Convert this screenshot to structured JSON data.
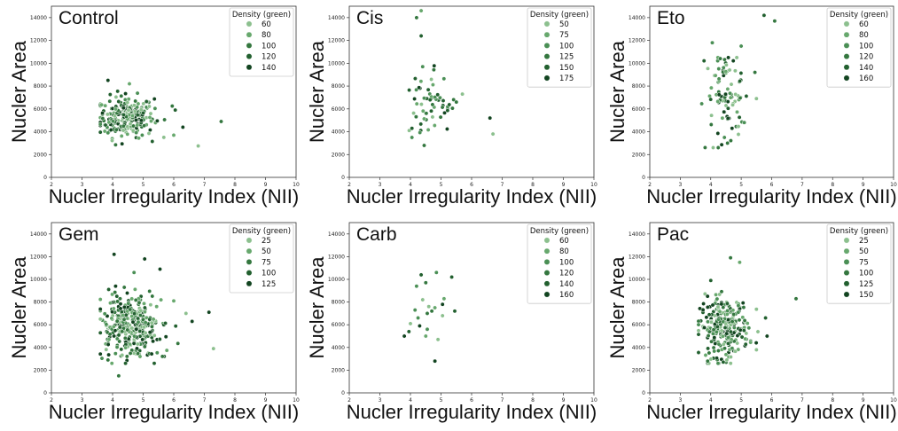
{
  "chart_data": [
    {
      "type": "scatter",
      "title": "Control",
      "xlabel": "Nucler Irregularity Index (NII)",
      "ylabel": "Nucler Area",
      "xlim": [
        2,
        10
      ],
      "ylim": [
        0,
        15000
      ],
      "xticks": [
        "2",
        "3",
        "4",
        "5",
        "6",
        "7",
        "8",
        "9",
        "10"
      ],
      "yticks": [
        "0",
        "2000",
        "4000",
        "6000",
        "8000",
        "10000",
        "12000",
        "14000"
      ],
      "legend": {
        "title": "Density (green)",
        "position": "top-right",
        "labels": [
          "60",
          "80",
          "100",
          "120",
          "140"
        ]
      },
      "points": [
        [
          7.55,
          4900
        ],
        [
          6.8,
          2750
        ],
        [
          6.3,
          4400
        ],
        [
          6.0,
          3700
        ],
        [
          6.05,
          5900
        ],
        [
          5.95,
          6250
        ],
        [
          5.3,
          3150
        ],
        [
          3.85,
          8500
        ],
        [
          4.55,
          8200
        ],
        [
          3.85,
          3900
        ],
        [
          4.1,
          2850
        ]
      ],
      "cluster": {
        "n": 240,
        "x_mean": 4.45,
        "x_sd": 0.45,
        "y_mean": 5300,
        "y_sd": 900
      }
    },
    {
      "type": "scatter",
      "title": "Cis",
      "xlabel": "Nucler Irregularity Index (NII)",
      "ylabel": "Nucler Area",
      "xlim": [
        2,
        10
      ],
      "ylim": [
        0,
        15000
      ],
      "xticks": [
        "2",
        "3",
        "4",
        "5",
        "6",
        "7",
        "8",
        "9",
        "10"
      ],
      "yticks": [
        "0",
        "2000",
        "4000",
        "6000",
        "8000",
        "10000",
        "12000",
        "14000"
      ],
      "legend": {
        "title": "Density (green)",
        "position": "top-right",
        "labels": [
          "50",
          "75",
          "100",
          "125",
          "150",
          "175"
        ]
      },
      "points": [
        [
          4.2,
          14000
        ],
        [
          4.35,
          14600
        ],
        [
          4.35,
          12400
        ],
        [
          4.4,
          9700
        ],
        [
          6.6,
          5200
        ],
        [
          6.7,
          3800
        ],
        [
          4.05,
          4300
        ],
        [
          4.05,
          3500
        ],
        [
          4.45,
          2800
        ],
        [
          5.7,
          7300
        ],
        [
          5.5,
          6600
        ]
      ],
      "cluster": {
        "n": 55,
        "x_mean": 4.6,
        "x_sd": 0.35,
        "y_mean": 6300,
        "y_sd": 1300
      }
    },
    {
      "type": "scatter",
      "title": "Eto",
      "xlabel": "Nucler Irregularity Index (NII)",
      "ylabel": "Nucler Area",
      "xlim": [
        2,
        10
      ],
      "ylim": [
        0,
        15000
      ],
      "xticks": [
        "2",
        "3",
        "4",
        "5",
        "6",
        "7",
        "8",
        "9",
        "10"
      ],
      "yticks": [
        "0",
        "2000",
        "4000",
        "6000",
        "8000",
        "10000",
        "12000",
        "14000"
      ],
      "legend": {
        "title": "Density (green)",
        "position": "top-right",
        "labels": [
          "60",
          "80",
          "100",
          "120",
          "140",
          "160"
        ]
      },
      "points": [
        [
          5.75,
          14200
        ],
        [
          6.1,
          13700
        ],
        [
          5.0,
          11500
        ],
        [
          4.05,
          11800
        ],
        [
          5.45,
          9200
        ],
        [
          5.5,
          6900
        ],
        [
          5.1,
          4800
        ],
        [
          4.55,
          3000
        ],
        [
          4.45,
          3500
        ],
        [
          4.7,
          4300
        ]
      ],
      "cluster": {
        "n": 90,
        "x_mean": 4.45,
        "x_sd": 0.35,
        "y_mean": 7400,
        "y_sd": 1900
      }
    },
    {
      "type": "scatter",
      "title": "Gem",
      "xlabel": "Nucler Irregularity Index (NII)",
      "ylabel": "Nucler Area",
      "xlim": [
        2,
        10
      ],
      "ylim": [
        0,
        15000
      ],
      "xticks": [
        "2",
        "3",
        "4",
        "5",
        "6",
        "7",
        "8",
        "9",
        "10"
      ],
      "yticks": [
        "0",
        "2000",
        "4000",
        "6000",
        "8000",
        "10000",
        "12000",
        "14000"
      ],
      "legend": {
        "title": "Density (green)",
        "position": "top-right",
        "labels": [
          "25",
          "50",
          "75",
          "100",
          "125"
        ]
      },
      "points": [
        [
          4.05,
          12200
        ],
        [
          5.05,
          11800
        ],
        [
          5.55,
          10900
        ],
        [
          4.7,
          10600
        ],
        [
          7.3,
          3900
        ],
        [
          7.15,
          7100
        ],
        [
          6.6,
          6300
        ],
        [
          6.4,
          7000
        ],
        [
          4.2,
          1500
        ],
        [
          6.0,
          8100
        ],
        [
          3.85,
          2900
        ]
      ],
      "cluster": {
        "n": 340,
        "x_mean": 4.6,
        "x_sd": 0.55,
        "y_mean": 5800,
        "y_sd": 1300
      }
    },
    {
      "type": "scatter",
      "title": "Carb",
      "xlabel": "Nucler Irregularity Index (NII)",
      "ylabel": "Nucler Area",
      "xlim": [
        2,
        10
      ],
      "ylim": [
        0,
        15000
      ],
      "xticks": [
        "2",
        "3",
        "4",
        "5",
        "6",
        "7",
        "8",
        "9",
        "10"
      ],
      "yticks": [
        "0",
        "2000",
        "4000",
        "6000",
        "8000",
        "10000",
        "12000",
        "14000"
      ],
      "legend": {
        "title": "Density (green)",
        "position": "top-right",
        "labels": [
          "60",
          "80",
          "100",
          "120",
          "140",
          "160"
        ]
      },
      "points": [
        [
          4.35,
          10400
        ],
        [
          4.85,
          10600
        ],
        [
          5.35,
          10200
        ],
        [
          4.2,
          9400
        ],
        [
          4.5,
          9700
        ],
        [
          5.1,
          8300
        ],
        [
          5.45,
          7200
        ],
        [
          5.05,
          7800
        ],
        [
          4.4,
          8200
        ],
        [
          4.7,
          7200
        ],
        [
          4.8,
          7500
        ],
        [
          4.55,
          7000
        ],
        [
          4.15,
          7300
        ],
        [
          4.25,
          6600
        ],
        [
          4.0,
          6100
        ],
        [
          3.8,
          5000
        ],
        [
          3.95,
          5400
        ],
        [
          4.5,
          5000
        ],
        [
          4.3,
          5900
        ],
        [
          4.55,
          5600
        ],
        [
          4.9,
          4700
        ],
        [
          4.8,
          2800
        ],
        [
          4.6,
          7600
        ],
        [
          5.05,
          6800
        ]
      ],
      "cluster": {
        "n": 0,
        "x_mean": 4.5,
        "x_sd": 0.3,
        "y_mean": 7000,
        "y_sd": 1500
      }
    },
    {
      "type": "scatter",
      "title": "Pac",
      "xlabel": "Nucler Irregularity Index (NII)",
      "ylabel": "Nucler Area",
      "xlim": [
        2,
        10
      ],
      "ylim": [
        0,
        15000
      ],
      "xticks": [
        "2",
        "3",
        "4",
        "5",
        "6",
        "7",
        "8",
        "9",
        "10"
      ],
      "yticks": [
        "0",
        "2000",
        "4000",
        "6000",
        "8000",
        "10000",
        "12000",
        "14000"
      ],
      "legend": {
        "title": "Density (green)",
        "position": "top-right",
        "labels": [
          "25",
          "50",
          "75",
          "100",
          "125",
          "150"
        ]
      },
      "points": [
        [
          6.8,
          8300
        ],
        [
          4.65,
          11900
        ],
        [
          4.95,
          11500
        ],
        [
          4.0,
          9900
        ],
        [
          5.8,
          6600
        ],
        [
          5.85,
          5000
        ],
        [
          5.5,
          3800
        ],
        [
          3.9,
          2800
        ]
      ],
      "cluster": {
        "n": 260,
        "x_mean": 4.45,
        "x_sd": 0.4,
        "y_mean": 5800,
        "y_sd": 1300
      }
    }
  ]
}
